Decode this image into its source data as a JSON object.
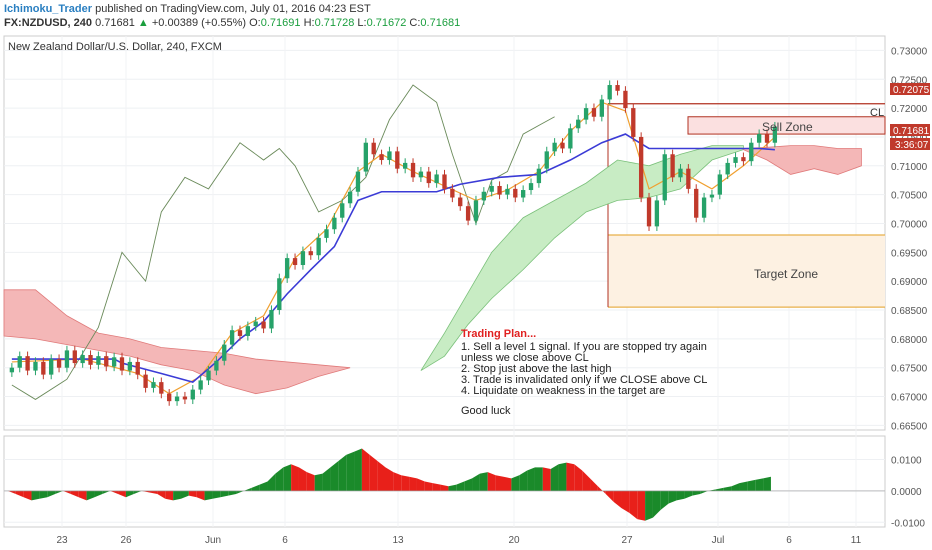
{
  "header": {
    "author": "Ichimoku_Trader",
    "published_text": "published on TradingView.com, July 01, 2016 04:23 EST",
    "symbol": "FX:NZDUSD, 240",
    "last_price": "0.71681",
    "change_arrow": "▲",
    "change": "+0.00389 (+0.55%)",
    "open_label": "O:",
    "open": "0.71691",
    "high_label": "H:",
    "high": "0.71728",
    "low_label": "L:",
    "low": "0.71672",
    "close_label": "C:",
    "close": "0.71681"
  },
  "chart_title": "New Zealand Dollar/U.S. Dollar, 240, FXCM",
  "colors": {
    "up": "#26a269",
    "down": "#c0392b",
    "kijun": "#3b3bd6",
    "tenkan": "#f0a030",
    "chikou": "#6a8a5a",
    "cloud_bull": "#c8ecc4",
    "cloud_bear": "#f4b7b7",
    "osc_up": "#1a8a2a",
    "osc_down": "#e8201a",
    "resistance": "#b03020",
    "target": "#e8b04a"
  },
  "annotations": {
    "cl_label": "CL",
    "sell_zone": "Sell Zone",
    "target_zone": "Target Zone",
    "plan_title": "Trading Plan...",
    "plan_lines": [
      "1. Sell a level 1 signal. If you are stopped try again",
      "unless we close above CL",
      "2. Stop just above the last high",
      "3. Trade is invalidated only if we CLOSE above CL",
      "4. Liquidate on weakness in the target are",
      "",
      "Good luck"
    ]
  },
  "price_tags": {
    "cl": "0.72075",
    "last": "0.71681",
    "timer": "3:36:07"
  },
  "chart_data": {
    "type": "line",
    "title": "New Zealand Dollar/U.S. Dollar, 240, FXCM",
    "price_axis": {
      "ticks": [
        "0.73000",
        "0.72500",
        "0.72000",
        "0.71500",
        "0.71000",
        "0.70500",
        "0.70000",
        "0.69500",
        "0.69000",
        "0.68500",
        "0.68000",
        "0.67500",
        "0.67000",
        "0.66500"
      ],
      "range": [
        0.6642,
        0.7325
      ]
    },
    "oscillator_axis": {
      "ticks": [
        "0.0100",
        "0.0000",
        "-0.0100"
      ],
      "range": [
        -0.0115,
        0.0175
      ]
    },
    "x_ticks": [
      "23",
      "26",
      "Jun",
      "6",
      "13",
      "20",
      "27",
      "Jul",
      "6",
      "11"
    ],
    "levels": {
      "cl": 0.72075,
      "sell_zone": [
        0.7155,
        0.7185
      ],
      "target_zone": [
        0.6855,
        0.698
      ]
    },
    "close_series": [
      {
        "x": 1,
        "y": 0.675
      },
      {
        "x": 2,
        "y": 0.677
      },
      {
        "x": 3,
        "y": 0.6745
      },
      {
        "x": 4,
        "y": 0.676
      },
      {
        "x": 5,
        "y": 0.6738
      },
      {
        "x": 6,
        "y": 0.6765
      },
      {
        "x": 7,
        "y": 0.675
      },
      {
        "x": 8,
        "y": 0.678
      },
      {
        "x": 9,
        "y": 0.6758
      },
      {
        "x": 10,
        "y": 0.6772
      },
      {
        "x": 11,
        "y": 0.6755
      },
      {
        "x": 12,
        "y": 0.677
      },
      {
        "x": 13,
        "y": 0.6752
      },
      {
        "x": 14,
        "y": 0.6768
      },
      {
        "x": 15,
        "y": 0.6745
      },
      {
        "x": 16,
        "y": 0.676
      },
      {
        "x": 17,
        "y": 0.6738
      },
      {
        "x": 18,
        "y": 0.6715
      },
      {
        "x": 19,
        "y": 0.6725
      },
      {
        "x": 20,
        "y": 0.6705
      },
      {
        "x": 21,
        "y": 0.6692
      },
      {
        "x": 22,
        "y": 0.67
      },
      {
        "x": 23,
        "y": 0.6695
      },
      {
        "x": 24,
        "y": 0.6712
      },
      {
        "x": 25,
        "y": 0.6728
      },
      {
        "x": 26,
        "y": 0.6745
      },
      {
        "x": 27,
        "y": 0.6762
      },
      {
        "x": 28,
        "y": 0.679
      },
      {
        "x": 29,
        "y": 0.6815
      },
      {
        "x": 30,
        "y": 0.6805
      },
      {
        "x": 31,
        "y": 0.6822
      },
      {
        "x": 32,
        "y": 0.683
      },
      {
        "x": 33,
        "y": 0.6818
      },
      {
        "x": 34,
        "y": 0.685
      },
      {
        "x": 35,
        "y": 0.6905
      },
      {
        "x": 36,
        "y": 0.694
      },
      {
        "x": 37,
        "y": 0.6928
      },
      {
        "x": 38,
        "y": 0.6952
      },
      {
        "x": 39,
        "y": 0.6945
      },
      {
        "x": 40,
        "y": 0.6975
      },
      {
        "x": 41,
        "y": 0.699
      },
      {
        "x": 42,
        "y": 0.701
      },
      {
        "x": 43,
        "y": 0.7035
      },
      {
        "x": 44,
        "y": 0.7055
      },
      {
        "x": 45,
        "y": 0.709
      },
      {
        "x": 46,
        "y": 0.714
      },
      {
        "x": 47,
        "y": 0.712
      },
      {
        "x": 48,
        "y": 0.711
      },
      {
        "x": 49,
        "y": 0.7125
      },
      {
        "x": 50,
        "y": 0.7095
      },
      {
        "x": 51,
        "y": 0.7105
      },
      {
        "x": 52,
        "y": 0.708
      },
      {
        "x": 53,
        "y": 0.709
      },
      {
        "x": 54,
        "y": 0.707
      },
      {
        "x": 55,
        "y": 0.7085
      },
      {
        "x": 56,
        "y": 0.706
      },
      {
        "x": 57,
        "y": 0.7045
      },
      {
        "x": 58,
        "y": 0.703
      },
      {
        "x": 59,
        "y": 0.7005
      },
      {
        "x": 60,
        "y": 0.704
      },
      {
        "x": 61,
        "y": 0.7055
      },
      {
        "x": 62,
        "y": 0.7065
      },
      {
        "x": 63,
        "y": 0.705
      },
      {
        "x": 64,
        "y": 0.706
      },
      {
        "x": 65,
        "y": 0.7045
      },
      {
        "x": 66,
        "y": 0.7058
      },
      {
        "x": 67,
        "y": 0.707
      },
      {
        "x": 68,
        "y": 0.7095
      },
      {
        "x": 69,
        "y": 0.7125
      },
      {
        "x": 70,
        "y": 0.714
      },
      {
        "x": 71,
        "y": 0.713
      },
      {
        "x": 72,
        "y": 0.7165
      },
      {
        "x": 73,
        "y": 0.718
      },
      {
        "x": 74,
        "y": 0.72
      },
      {
        "x": 75,
        "y": 0.7185
      },
      {
        "x": 76,
        "y": 0.7215
      },
      {
        "x": 77,
        "y": 0.724
      },
      {
        "x": 78,
        "y": 0.723
      },
      {
        "x": 79,
        "y": 0.72
      },
      {
        "x": 80,
        "y": 0.715
      },
      {
        "x": 81,
        "y": 0.7045
      },
      {
        "x": 82,
        "y": 0.6995
      },
      {
        "x": 83,
        "y": 0.704
      },
      {
        "x": 84,
        "y": 0.712
      },
      {
        "x": 85,
        "y": 0.708
      },
      {
        "x": 86,
        "y": 0.7095
      },
      {
        "x": 87,
        "y": 0.706
      },
      {
        "x": 88,
        "y": 0.701
      },
      {
        "x": 89,
        "y": 0.7045
      },
      {
        "x": 90,
        "y": 0.705
      },
      {
        "x": 91,
        "y": 0.7085
      },
      {
        "x": 92,
        "y": 0.7105
      },
      {
        "x": 93,
        "y": 0.7115
      },
      {
        "x": 94,
        "y": 0.7108
      },
      {
        "x": 95,
        "y": 0.714
      },
      {
        "x": 96,
        "y": 0.7155
      },
      {
        "x": 97,
        "y": 0.714
      },
      {
        "x": 98,
        "y": 0.7168
      }
    ],
    "kijun_series": [
      {
        "x": 1,
        "y": 0.6765
      },
      {
        "x": 14,
        "y": 0.6765
      },
      {
        "x": 15,
        "y": 0.6758
      },
      {
        "x": 20,
        "y": 0.674
      },
      {
        "x": 24,
        "y": 0.6725
      },
      {
        "x": 27,
        "y": 0.676
      },
      {
        "x": 30,
        "y": 0.68
      },
      {
        "x": 33,
        "y": 0.683
      },
      {
        "x": 36,
        "y": 0.6878
      },
      {
        "x": 39,
        "y": 0.692
      },
      {
        "x": 42,
        "y": 0.696
      },
      {
        "x": 45,
        "y": 0.704
      },
      {
        "x": 48,
        "y": 0.7055
      },
      {
        "x": 55,
        "y": 0.7055
      },
      {
        "x": 58,
        "y": 0.7068
      },
      {
        "x": 63,
        "y": 0.708
      },
      {
        "x": 68,
        "y": 0.7085
      },
      {
        "x": 72,
        "y": 0.711
      },
      {
        "x": 76,
        "y": 0.714
      },
      {
        "x": 79,
        "y": 0.7155
      },
      {
        "x": 82,
        "y": 0.713
      },
      {
        "x": 90,
        "y": 0.713
      },
      {
        "x": 96,
        "y": 0.713
      },
      {
        "x": 98,
        "y": 0.7128
      }
    ],
    "tenkan_series": [
      {
        "x": 1,
        "y": 0.676
      },
      {
        "x": 10,
        "y": 0.6765
      },
      {
        "x": 17,
        "y": 0.674
      },
      {
        "x": 21,
        "y": 0.6705
      },
      {
        "x": 25,
        "y": 0.6735
      },
      {
        "x": 29,
        "y": 0.681
      },
      {
        "x": 33,
        "y": 0.684
      },
      {
        "x": 37,
        "y": 0.694
      },
      {
        "x": 41,
        "y": 0.699
      },
      {
        "x": 45,
        "y": 0.709
      },
      {
        "x": 48,
        "y": 0.712
      },
      {
        "x": 52,
        "y": 0.709
      },
      {
        "x": 56,
        "y": 0.7065
      },
      {
        "x": 60,
        "y": 0.704
      },
      {
        "x": 64,
        "y": 0.7058
      },
      {
        "x": 68,
        "y": 0.709
      },
      {
        "x": 72,
        "y": 0.716
      },
      {
        "x": 76,
        "y": 0.721
      },
      {
        "x": 79,
        "y": 0.7195
      },
      {
        "x": 82,
        "y": 0.706
      },
      {
        "x": 86,
        "y": 0.709
      },
      {
        "x": 90,
        "y": 0.706
      },
      {
        "x": 94,
        "y": 0.71
      },
      {
        "x": 98,
        "y": 0.715
      }
    ],
    "chikou_series": [
      {
        "x": 1,
        "y": 0.672
      },
      {
        "x": 4,
        "y": 0.6695
      },
      {
        "x": 8,
        "y": 0.673
      },
      {
        "x": 12,
        "y": 0.682
      },
      {
        "x": 15,
        "y": 0.695
      },
      {
        "x": 18,
        "y": 0.69
      },
      {
        "x": 20,
        "y": 0.702
      },
      {
        "x": 23,
        "y": 0.708
      },
      {
        "x": 26,
        "y": 0.706
      },
      {
        "x": 30,
        "y": 0.714
      },
      {
        "x": 33,
        "y": 0.711
      },
      {
        "x": 35,
        "y": 0.713
      },
      {
        "x": 37,
        "y": 0.71
      },
      {
        "x": 40,
        "y": 0.702
      },
      {
        "x": 43,
        "y": 0.704
      },
      {
        "x": 46,
        "y": 0.708
      },
      {
        "x": 49,
        "y": 0.718
      },
      {
        "x": 52,
        "y": 0.724
      },
      {
        "x": 55,
        "y": 0.721
      },
      {
        "x": 57,
        "y": 0.712
      },
      {
        "x": 60,
        "y": 0.7
      },
      {
        "x": 62,
        "y": 0.7075
      },
      {
        "x": 64,
        "y": 0.709
      },
      {
        "x": 66,
        "y": 0.7155
      },
      {
        "x": 68,
        "y": 0.717
      },
      {
        "x": 70,
        "y": 0.7185
      }
    ],
    "cloud_bull": {
      "upper": [
        {
          "x": 53,
          "y": 0.6745
        },
        {
          "x": 56,
          "y": 0.681
        },
        {
          "x": 59,
          "y": 0.688
        },
        {
          "x": 62,
          "y": 0.695
        },
        {
          "x": 66,
          "y": 0.701
        },
        {
          "x": 70,
          "y": 0.704
        },
        {
          "x": 74,
          "y": 0.707
        },
        {
          "x": 78,
          "y": 0.711
        },
        {
          "x": 82,
          "y": 0.71
        },
        {
          "x": 86,
          "y": 0.712
        },
        {
          "x": 90,
          "y": 0.7135
        },
        {
          "x": 94,
          "y": 0.7135
        }
      ],
      "lower": [
        {
          "x": 53,
          "y": 0.6745
        },
        {
          "x": 56,
          "y": 0.677
        },
        {
          "x": 59,
          "y": 0.6825
        },
        {
          "x": 62,
          "y": 0.687
        },
        {
          "x": 66,
          "y": 0.692
        },
        {
          "x": 70,
          "y": 0.6975
        },
        {
          "x": 74,
          "y": 0.702
        },
        {
          "x": 78,
          "y": 0.704
        },
        {
          "x": 82,
          "y": 0.7045
        },
        {
          "x": 86,
          "y": 0.706
        },
        {
          "x": 90,
          "y": 0.711
        },
        {
          "x": 94,
          "y": 0.7128
        }
      ]
    },
    "cloud_bear_left": {
      "upper": [
        {
          "x": 0,
          "y": 0.6885
        },
        {
          "x": 4,
          "y": 0.6885
        },
        {
          "x": 8,
          "y": 0.684
        },
        {
          "x": 12,
          "y": 0.681
        },
        {
          "x": 16,
          "y": 0.68
        },
        {
          "x": 20,
          "y": 0.6785
        },
        {
          "x": 24,
          "y": 0.678
        },
        {
          "x": 28,
          "y": 0.6775
        },
        {
          "x": 32,
          "y": 0.6765
        },
        {
          "x": 36,
          "y": 0.676
        },
        {
          "x": 40,
          "y": 0.6755
        },
        {
          "x": 44,
          "y": 0.675
        }
      ],
      "lower": [
        {
          "x": 0,
          "y": 0.6805
        },
        {
          "x": 4,
          "y": 0.68
        },
        {
          "x": 8,
          "y": 0.679
        },
        {
          "x": 12,
          "y": 0.678
        },
        {
          "x": 16,
          "y": 0.677
        },
        {
          "x": 20,
          "y": 0.6755
        },
        {
          "x": 24,
          "y": 0.6745
        },
        {
          "x": 28,
          "y": 0.672
        },
        {
          "x": 32,
          "y": 0.6705
        },
        {
          "x": 36,
          "y": 0.6715
        },
        {
          "x": 40,
          "y": 0.6735
        },
        {
          "x": 44,
          "y": 0.675
        }
      ]
    },
    "cloud_bear_right": {
      "upper": [
        {
          "x": 94,
          "y": 0.713
        },
        {
          "x": 97,
          "y": 0.7132
        },
        {
          "x": 100,
          "y": 0.7135
        },
        {
          "x": 103,
          "y": 0.7135
        },
        {
          "x": 106,
          "y": 0.713
        },
        {
          "x": 109,
          "y": 0.713
        }
      ],
      "lower": [
        {
          "x": 94,
          "y": 0.7128
        },
        {
          "x": 97,
          "y": 0.711
        },
        {
          "x": 100,
          "y": 0.7085
        },
        {
          "x": 103,
          "y": 0.7095
        },
        {
          "x": 106,
          "y": 0.7085
        },
        {
          "x": 109,
          "y": 0.71
        }
      ]
    },
    "oscillator_series": [
      0.0,
      -0.001,
      -0.002,
      -0.003,
      -0.0025,
      -0.002,
      -0.001,
      0.0,
      -0.001,
      -0.002,
      -0.003,
      -0.002,
      -0.001,
      0.0,
      -0.001,
      -0.002,
      -0.001,
      0.0,
      -0.0005,
      -0.001,
      -0.0025,
      -0.003,
      -0.0025,
      -0.0015,
      -0.002,
      -0.003,
      -0.0025,
      -0.002,
      -0.0015,
      -0.001,
      0.0,
      0.001,
      0.002,
      0.003,
      0.0055,
      0.0075,
      0.0085,
      0.0075,
      0.006,
      0.005,
      0.0055,
      0.0075,
      0.0095,
      0.0115,
      0.0125,
      0.0135,
      0.0115,
      0.0095,
      0.0075,
      0.006,
      0.005,
      0.0045,
      0.004,
      0.003,
      0.0025,
      0.002,
      0.0015,
      0.002,
      0.003,
      0.004,
      0.0055,
      0.006,
      0.005,
      0.0045,
      0.004,
      0.005,
      0.0065,
      0.0075,
      0.0075,
      0.007,
      0.0085,
      0.009,
      0.0085,
      0.0065,
      0.004,
      0.0015,
      -0.001,
      -0.0035,
      -0.0055,
      -0.007,
      -0.009,
      -0.0095,
      -0.0085,
      -0.006,
      -0.004,
      -0.003,
      -0.0025,
      -0.0015,
      -0.001,
      0.0,
      0.0005,
      0.001,
      0.0015,
      0.0025,
      0.003,
      0.0035,
      0.004,
      0.0045
    ]
  }
}
